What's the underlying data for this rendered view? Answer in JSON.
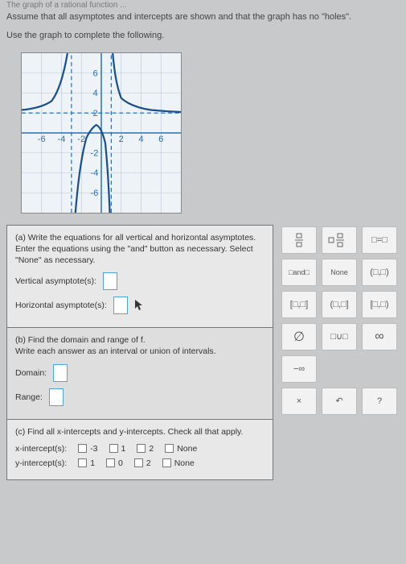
{
  "header": {
    "line0": "The graph of a rational function ...",
    "line1": "Assume that all asymptotes and intercepts are shown and that the graph has no \"holes\".",
    "line2": "Use the graph to complete the following."
  },
  "graph": {
    "xlim": [
      -8,
      8
    ],
    "ylim": [
      -8,
      8
    ],
    "tick_step": 2,
    "axis_color": "#2a6fb0",
    "grid_color": "#b8c8d8",
    "asymptote_color": "#2a6fb0",
    "curve_color": "#1a4f8a",
    "vertical_asymptotes_x": [
      -3,
      1
    ],
    "horizontal_asymptote_y": 2,
    "background": "#eef3f8"
  },
  "parts": {
    "a": {
      "prompt": "(a) Write the equations for all vertical and horizontal asymptotes. Enter the equations using the \"and\" button as necessary. Select \"None\" as necessary.",
      "vertical_label": "Vertical asymptote(s):",
      "horizontal_label": "Horizontal asymptote(s):"
    },
    "b": {
      "prompt": "(b) Find the domain and range of f.",
      "sub": "Write each answer as an interval or union of intervals.",
      "domain_label": "Domain:",
      "range_label": "Range:"
    },
    "c": {
      "prompt": "(c) Find all x-intercepts and y-intercepts. Check all that apply.",
      "x_label": "x-intercept(s):",
      "y_label": "y-intercept(s):",
      "x_options": [
        "-3",
        "1",
        "2",
        "None"
      ],
      "y_options": [
        "1",
        "0",
        "2",
        "None"
      ]
    }
  },
  "keypad": {
    "keys": [
      {
        "name": "fraction",
        "type": "svg-frac"
      },
      {
        "name": "mixed-fraction",
        "type": "svg-mixedfrac"
      },
      {
        "name": "equals",
        "label": "□=□"
      },
      {
        "name": "and",
        "label": "□and□",
        "small": true
      },
      {
        "name": "none",
        "label": "None",
        "small": true
      },
      {
        "name": "ordered-pair",
        "label": "(□,□)"
      },
      {
        "name": "closed-closed",
        "label": "[□,□]"
      },
      {
        "name": "open-closed",
        "label": "(□,□]"
      },
      {
        "name": "closed-open",
        "label": "[□,□)"
      },
      {
        "name": "empty-set",
        "label": "∅",
        "big": true
      },
      {
        "name": "union",
        "label": "□∪□"
      },
      {
        "name": "infinity",
        "label": "∞",
        "big": true
      },
      {
        "name": "neg-infinity",
        "label": "−∞"
      },
      {
        "name": "blank1",
        "label": ""
      },
      {
        "name": "blank2",
        "label": ""
      },
      {
        "name": "clear",
        "label": "×"
      },
      {
        "name": "undo",
        "label": "↶"
      },
      {
        "name": "help",
        "label": "?"
      }
    ]
  }
}
